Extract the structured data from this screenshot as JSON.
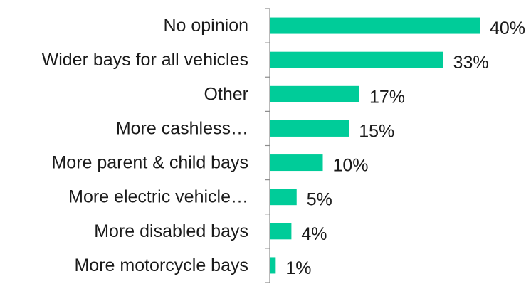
{
  "chart_data": {
    "type": "bar",
    "orientation": "horizontal",
    "title": "",
    "xlabel": "",
    "ylabel": "",
    "categories": [
      "No opinion",
      "Wider bays for all vehicles",
      "Other",
      "More cashless…",
      "More parent & child bays",
      "More electric vehicle…",
      "More disabled bays",
      "More motorcycle bays"
    ],
    "values": [
      40,
      33,
      17,
      15,
      10,
      5,
      4,
      1
    ],
    "value_labels": [
      "40%",
      "33%",
      "17%",
      "15%",
      "10%",
      "5%",
      "4%",
      "1%"
    ],
    "unit": "%",
    "xlim": [
      0,
      40
    ],
    "bar_color": "#00CC99",
    "grid": false,
    "legend": "none"
  }
}
